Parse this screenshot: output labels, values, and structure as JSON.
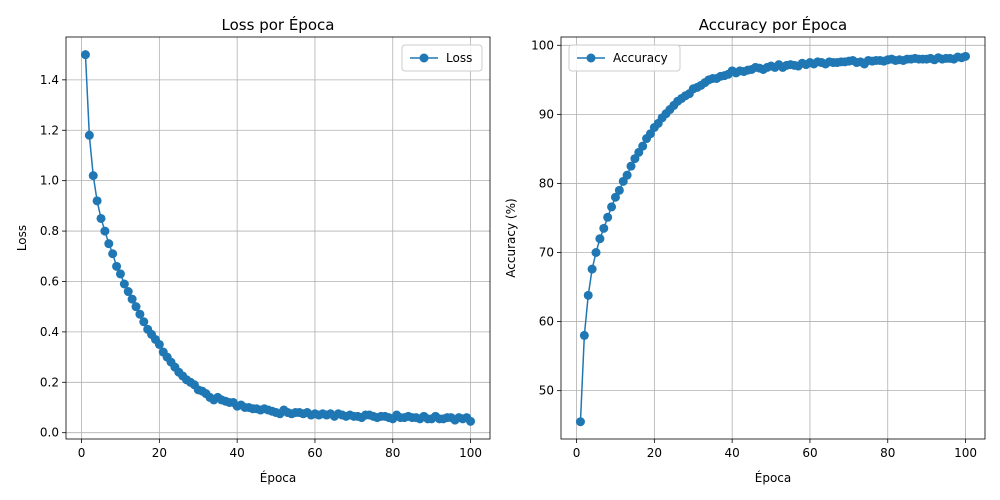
{
  "chart_data": [
    {
      "type": "line",
      "title": "Loss por Época",
      "xlabel": "Época",
      "ylabel": "Loss",
      "xlim": [
        -4,
        105
      ],
      "ylim": [
        -0.025,
        1.57
      ],
      "xticks": [
        0,
        20,
        40,
        60,
        80,
        100
      ],
      "yticks": [
        0.0,
        0.2,
        0.4,
        0.6,
        0.8,
        1.0,
        1.2,
        1.4
      ],
      "ytick_decimals": 1,
      "grid": true,
      "legend_position": "top-right",
      "series": [
        {
          "name": "Loss",
          "color": "#1f77b4",
          "marker": "circle",
          "x": [
            1,
            2,
            3,
            4,
            5,
            6,
            7,
            8,
            9,
            10,
            11,
            12,
            13,
            14,
            15,
            16,
            17,
            18,
            19,
            20,
            21,
            22,
            23,
            24,
            25,
            26,
            27,
            28,
            29,
            30,
            31,
            32,
            33,
            34,
            35,
            36,
            37,
            38,
            39,
            40,
            41,
            42,
            43,
            44,
            45,
            46,
            47,
            48,
            49,
            50,
            51,
            52,
            53,
            54,
            55,
            56,
            57,
            58,
            59,
            60,
            61,
            62,
            63,
            64,
            65,
            66,
            67,
            68,
            69,
            70,
            71,
            72,
            73,
            74,
            75,
            76,
            77,
            78,
            79,
            80,
            81,
            82,
            83,
            84,
            85,
            86,
            87,
            88,
            89,
            90,
            91,
            92,
            93,
            94,
            95,
            96,
            97,
            98,
            99,
            100
          ],
          "y": [
            1.5,
            1.18,
            1.02,
            0.92,
            0.85,
            0.8,
            0.75,
            0.71,
            0.66,
            0.63,
            0.59,
            0.56,
            0.53,
            0.5,
            0.47,
            0.44,
            0.41,
            0.39,
            0.37,
            0.35,
            0.32,
            0.3,
            0.28,
            0.26,
            0.24,
            0.225,
            0.21,
            0.2,
            0.19,
            0.17,
            0.165,
            0.155,
            0.14,
            0.13,
            0.14,
            0.13,
            0.125,
            0.12,
            0.12,
            0.105,
            0.11,
            0.1,
            0.1,
            0.095,
            0.095,
            0.09,
            0.095,
            0.09,
            0.085,
            0.08,
            0.075,
            0.09,
            0.08,
            0.075,
            0.08,
            0.08,
            0.075,
            0.08,
            0.07,
            0.075,
            0.07,
            0.075,
            0.07,
            0.075,
            0.065,
            0.075,
            0.07,
            0.065,
            0.07,
            0.065,
            0.065,
            0.06,
            0.07,
            0.07,
            0.065,
            0.06,
            0.065,
            0.065,
            0.06,
            0.055,
            0.07,
            0.06,
            0.06,
            0.065,
            0.06,
            0.06,
            0.055,
            0.065,
            0.055,
            0.055,
            0.065,
            0.055,
            0.055,
            0.06,
            0.06,
            0.05,
            0.06,
            0.055,
            0.06,
            0.045
          ]
        }
      ]
    },
    {
      "type": "line",
      "title": "Accuracy por Época",
      "xlabel": "Época",
      "ylabel": "Accuracy (%)",
      "xlim": [
        -4,
        105
      ],
      "ylim": [
        43.0,
        101.2
      ],
      "xticks": [
        0,
        20,
        40,
        60,
        80,
        100
      ],
      "yticks": [
        50,
        60,
        70,
        80,
        90,
        100
      ],
      "ytick_decimals": 0,
      "grid": true,
      "legend_position": "top-left",
      "series": [
        {
          "name": "Accuracy",
          "color": "#1f77b4",
          "marker": "circle",
          "x": [
            1,
            2,
            3,
            4,
            5,
            6,
            7,
            8,
            9,
            10,
            11,
            12,
            13,
            14,
            15,
            16,
            17,
            18,
            19,
            20,
            21,
            22,
            23,
            24,
            25,
            26,
            27,
            28,
            29,
            30,
            31,
            32,
            33,
            34,
            35,
            36,
            37,
            38,
            39,
            40,
            41,
            42,
            43,
            44,
            45,
            46,
            47,
            48,
            49,
            50,
            51,
            52,
            53,
            54,
            55,
            56,
            57,
            58,
            59,
            60,
            61,
            62,
            63,
            64,
            65,
            66,
            67,
            68,
            69,
            70,
            71,
            72,
            73,
            74,
            75,
            76,
            77,
            78,
            79,
            80,
            81,
            82,
            83,
            84,
            85,
            86,
            87,
            88,
            89,
            90,
            91,
            92,
            93,
            94,
            95,
            96,
            97,
            98,
            99,
            100
          ],
          "y": [
            45.5,
            58.0,
            63.8,
            67.6,
            70.0,
            72.0,
            73.5,
            75.1,
            76.6,
            78.0,
            79.0,
            80.3,
            81.2,
            82.5,
            83.6,
            84.5,
            85.4,
            86.5,
            87.2,
            88.1,
            88.7,
            89.5,
            90.1,
            90.7,
            91.3,
            91.9,
            92.3,
            92.7,
            93.0,
            93.7,
            93.9,
            94.2,
            94.6,
            95.0,
            95.2,
            95.2,
            95.5,
            95.6,
            95.8,
            96.3,
            96.0,
            96.3,
            96.2,
            96.4,
            96.5,
            96.8,
            96.7,
            96.5,
            96.8,
            97.0,
            96.8,
            97.2,
            96.8,
            97.1,
            97.2,
            97.1,
            97.0,
            97.4,
            97.2,
            97.5,
            97.3,
            97.6,
            97.5,
            97.3,
            97.6,
            97.5,
            97.5,
            97.6,
            97.6,
            97.7,
            97.8,
            97.5,
            97.6,
            97.3,
            97.8,
            97.7,
            97.8,
            97.8,
            97.7,
            97.9,
            98.0,
            97.8,
            97.9,
            97.8,
            98.0,
            98.0,
            98.1,
            98.0,
            98.0,
            98.0,
            98.1,
            97.9,
            98.2,
            98.0,
            98.1,
            98.1,
            98.0,
            98.3,
            98.2,
            98.4
          ]
        }
      ]
    }
  ]
}
